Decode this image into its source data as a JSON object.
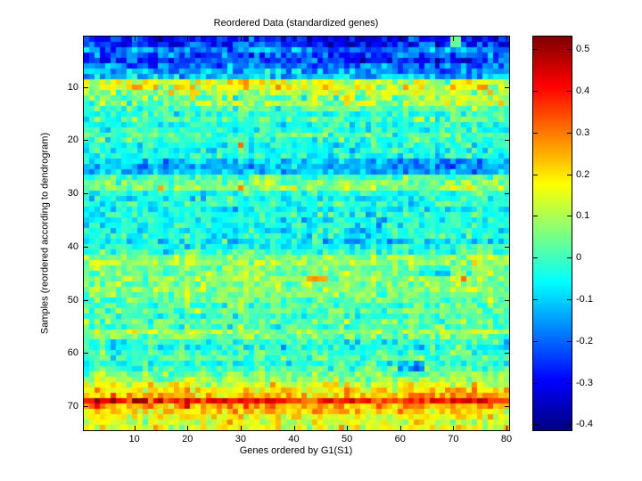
{
  "figure": {
    "title": "Reordered Data (standardized genes)",
    "xlabel": "Genes ordered by G1(S1)",
    "ylabel": "Samples (reordered according to dendrogram)",
    "background_color": "#ffffff",
    "axis_color": "#000000"
  },
  "chart_data": {
    "type": "heatmap",
    "rows": 74,
    "cols": 80,
    "colormap": "jet",
    "value_range": [
      -0.414,
      0.53
    ],
    "x_tick_values": [
      10,
      20,
      30,
      40,
      50,
      60,
      70,
      80
    ],
    "x_tick_labels": [
      "10",
      "20",
      "30",
      "40",
      "50",
      "60",
      "70",
      "80"
    ],
    "y_tick_values": [
      10,
      20,
      30,
      40,
      50,
      60,
      70
    ],
    "y_tick_labels": [
      "10",
      "20",
      "30",
      "40",
      "50",
      "60",
      "70"
    ],
    "colorbar_tick_values": [
      0.5,
      0.4,
      0.3,
      0.2,
      0.1,
      0,
      -0.1,
      -0.2,
      -0.3,
      -0.4
    ],
    "colorbar_tick_labels": [
      "0.5",
      "0.4",
      "0.3",
      "0.2",
      "0.1",
      "0",
      "-0.1",
      "-0.2",
      "-0.3",
      "-0.4"
    ],
    "row_means": [
      -0.3,
      -0.26,
      -0.17,
      -0.2,
      -0.22,
      -0.17,
      -0.14,
      -0.1,
      0.13,
      0.15,
      0.09,
      0.05,
      0.08,
      0.01,
      -0.02,
      0.01,
      -0.04,
      -0.02,
      0.02,
      -0.01,
      -0.05,
      -0.05,
      -0.03,
      -0.1,
      -0.13,
      -0.11,
      0.01,
      0.05,
      0.07,
      -0.02,
      -0.05,
      -0.03,
      -0.06,
      -0.03,
      -0.05,
      -0.03,
      -0.05,
      -0.03,
      -0.07,
      -0.04,
      -0.01,
      0.07,
      0.09,
      0.05,
      0.04,
      0.09,
      0.06,
      0.08,
      0.06,
      0.03,
      0.01,
      0.03,
      0.0,
      0.03,
      0.01,
      0.08,
      0.05,
      -0.02,
      -0.04,
      -0.01,
      0.01,
      -0.03,
      0.01,
      0.05,
      0.08,
      0.14,
      0.2,
      0.24,
      0.38,
      0.26,
      0.21,
      0.17,
      0.14,
      0.16
    ],
    "noise_sigma_default": 0.05,
    "noise_sigma_rows": [
      {
        "rows": [
          1,
          8
        ],
        "sigma": 0.06
      },
      {
        "rows": [
          9,
          13
        ],
        "sigma": 0.065
      },
      {
        "rows": [
          66,
          74
        ],
        "sigma": 0.055
      }
    ],
    "col_bias_amp": 0.02,
    "patches": [
      {
        "rows": [
          1,
          2
        ],
        "cols": [
          70,
          71
        ],
        "mode": "set",
        "value": 0.02
      },
      {
        "rows": [
          4,
          6
        ],
        "cols": [
          13,
          14
        ],
        "mode": "set",
        "value": -0.3
      },
      {
        "rows": [
          2,
          5
        ],
        "cols": [
          47,
          58
        ],
        "mode": "add",
        "value": -0.06
      },
      {
        "rows": [
          5,
          8
        ],
        "cols": [
          64,
          75
        ],
        "mode": "add",
        "value": -0.05
      },
      {
        "rows": [
          9,
          10
        ],
        "cols": [
          20,
          40
        ],
        "mode": "add",
        "value": 0.04
      },
      {
        "rows": [
          11,
          14
        ],
        "cols": [
          41,
          80
        ],
        "mode": "add",
        "value": 0.03
      },
      {
        "rows": [
          21,
          21
        ],
        "cols": [
          30,
          30
        ],
        "mode": "set",
        "value": 0.3
      },
      {
        "rows": [
          24,
          26
        ],
        "cols": [
          55,
          76
        ],
        "mode": "add",
        "value": -0.05
      },
      {
        "rows": [
          29,
          29
        ],
        "cols": [
          15,
          15
        ],
        "mode": "set",
        "value": 0.26
      },
      {
        "rows": [
          29,
          29
        ],
        "cols": [
          30,
          30
        ],
        "mode": "set",
        "value": 0.28
      },
      {
        "rows": [
          39,
          39
        ],
        "cols": [
          50,
          53
        ],
        "mode": "set",
        "value": -0.16
      },
      {
        "rows": [
          44,
          45
        ],
        "cols": [
          64,
          69
        ],
        "mode": "add",
        "value": -0.1
      },
      {
        "rows": [
          46,
          46
        ],
        "cols": [
          43,
          46
        ],
        "mode": "set",
        "value": 0.27
      },
      {
        "rows": [
          46,
          46
        ],
        "cols": [
          72,
          72
        ],
        "mode": "set",
        "value": 0.3
      },
      {
        "rows": [
          62,
          63
        ],
        "cols": [
          60,
          64
        ],
        "mode": "add",
        "value": -0.12
      },
      {
        "rows": [
          66,
          68
        ],
        "cols": [
          74,
          74
        ],
        "mode": "set",
        "value": 0.3
      },
      {
        "rows": [
          69,
          69
        ],
        "cols": [
          6,
          6
        ],
        "mode": "set",
        "value": 0.53
      },
      {
        "rows": [
          69,
          69
        ],
        "cols": [
          10,
          12
        ],
        "mode": "set",
        "value": 0.51
      },
      {
        "rows": [
          69,
          70
        ],
        "cols": [
          20,
          20
        ],
        "mode": "set",
        "value": 0.46
      },
      {
        "rows": [
          10,
          10
        ],
        "cols": [
          76,
          76
        ],
        "mode": "set",
        "value": 0.3
      }
    ],
    "seed": 7
  }
}
